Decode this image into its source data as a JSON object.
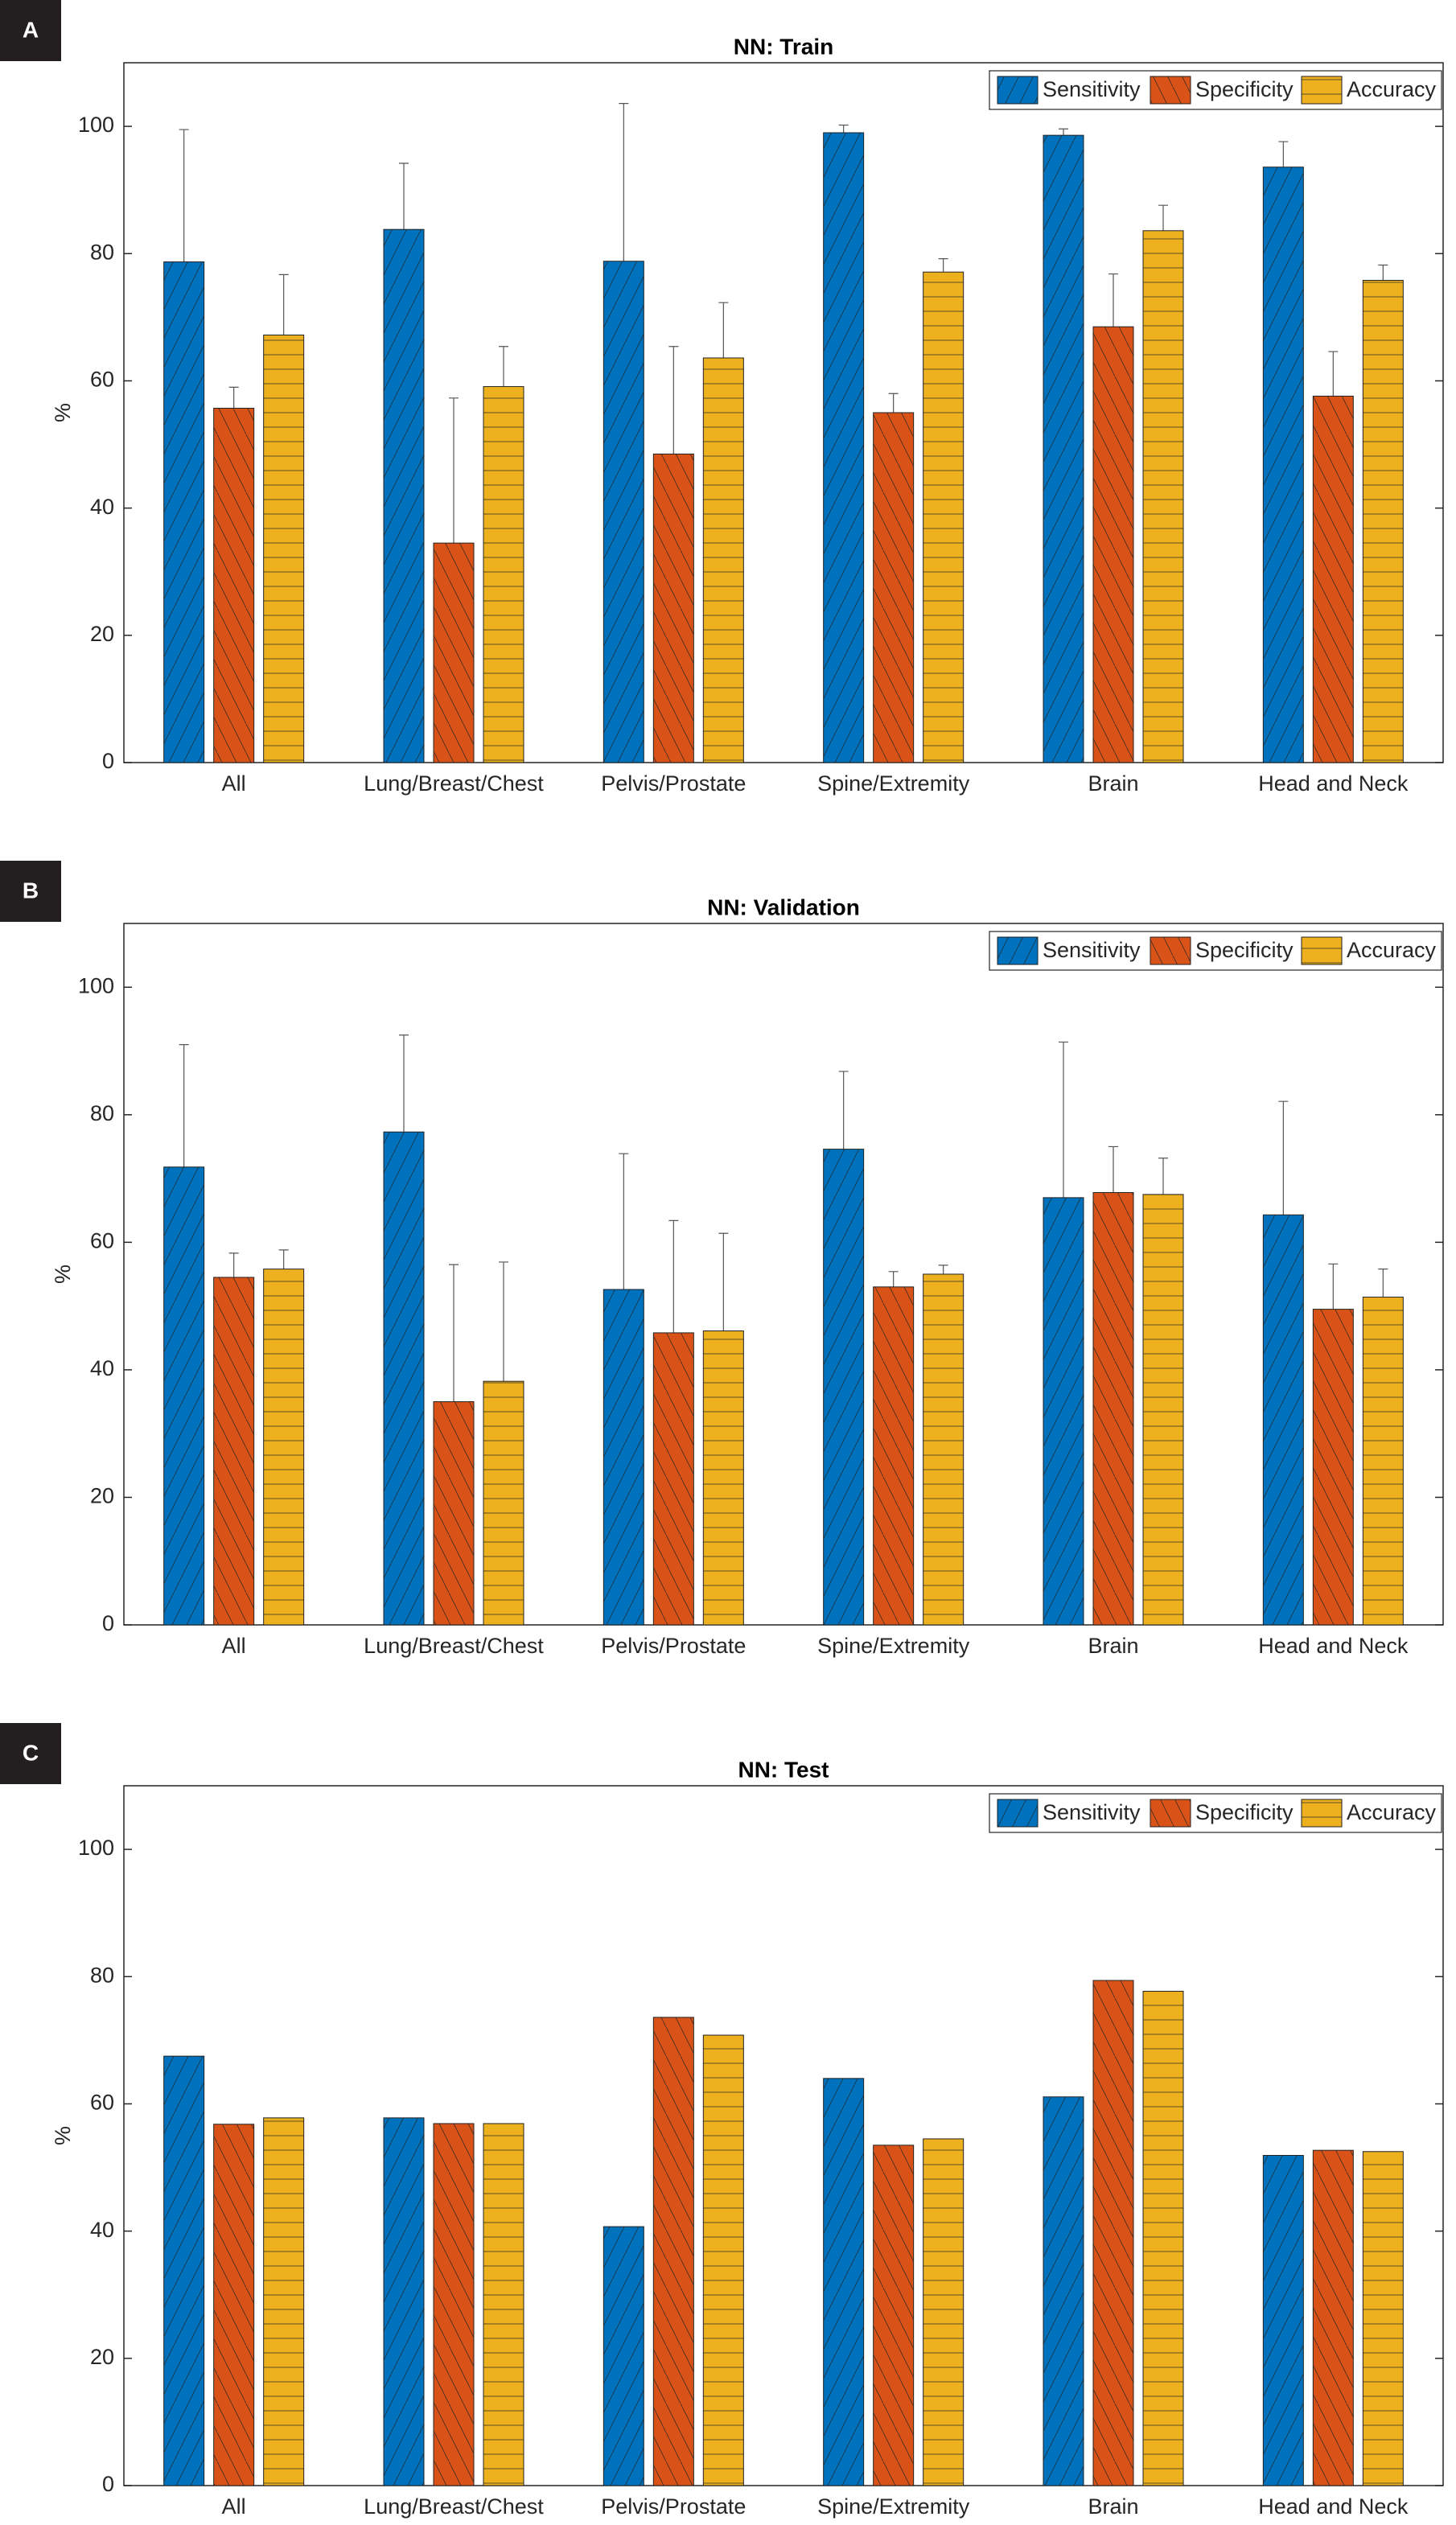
{
  "chart_data": [
    {
      "label": "A",
      "type": "bar",
      "title": "NN: Train",
      "ylabel": "%",
      "categories": [
        "All",
        "Lung/Breast/Chest",
        "Pelvis/Prostate",
        "Spine/Extremity",
        "Brain",
        "Head and Neck"
      ],
      "series": [
        {
          "name": "Sensitivity",
          "color": "#0072BD",
          "values": [
            78.7,
            83.8,
            78.8,
            99.0,
            98.6,
            93.6
          ],
          "errors": [
            20.8,
            10.4,
            24.8,
            1.2,
            1.0,
            4.0
          ]
        },
        {
          "name": "Specificity",
          "color": "#D95319",
          "values": [
            55.7,
            34.5,
            48.5,
            55.0,
            68.5,
            57.6
          ],
          "errors": [
            3.3,
            22.8,
            16.9,
            3.0,
            8.3,
            7.0
          ]
        },
        {
          "name": "Accuracy",
          "color": "#EDB120",
          "values": [
            67.2,
            59.1,
            63.6,
            77.1,
            83.6,
            75.8
          ],
          "errors": [
            9.5,
            6.3,
            8.7,
            2.1,
            4.0,
            2.4
          ]
        }
      ],
      "ylim": [
        0,
        110
      ],
      "yticks": [
        0,
        20,
        40,
        60,
        80,
        100
      ],
      "legend": "northeast"
    },
    {
      "label": "B",
      "type": "bar",
      "title": "NN: Validation",
      "ylabel": "%",
      "categories": [
        "All",
        "Lung/Breast/Chest",
        "Pelvis/Prostate",
        "Spine/Extremity",
        "Brain",
        "Head and Neck"
      ],
      "series": [
        {
          "name": "Sensitivity",
          "color": "#0072BD",
          "values": [
            71.8,
            77.3,
            52.6,
            74.6,
            67.0,
            64.3
          ],
          "errors": [
            19.2,
            15.2,
            21.3,
            12.2,
            24.4,
            17.8
          ]
        },
        {
          "name": "Specificity",
          "color": "#D95319",
          "values": [
            54.5,
            35.0,
            45.8,
            53.0,
            67.8,
            49.5
          ],
          "errors": [
            3.8,
            21.5,
            17.6,
            2.4,
            7.2,
            7.1
          ]
        },
        {
          "name": "Accuracy",
          "color": "#EDB120",
          "values": [
            55.8,
            38.2,
            46.1,
            55.0,
            67.5,
            51.4
          ],
          "errors": [
            3.0,
            18.7,
            15.3,
            1.4,
            5.7,
            4.4
          ]
        }
      ],
      "ylim": [
        0,
        110
      ],
      "yticks": [
        0,
        20,
        40,
        60,
        80,
        100
      ],
      "legend": "northeast"
    },
    {
      "label": "C",
      "type": "bar",
      "title": "NN: Test",
      "ylabel": "%",
      "categories": [
        "All",
        "Lung/Breast/Chest",
        "Pelvis/Prostate",
        "Spine/Extremity",
        "Brain",
        "Head and Neck"
      ],
      "series": [
        {
          "name": "Sensitivity",
          "color": "#0072BD",
          "values": [
            67.5,
            57.8,
            40.7,
            64.0,
            61.1,
            51.9
          ]
        },
        {
          "name": "Specificity",
          "color": "#D95319",
          "values": [
            56.8,
            56.9,
            73.6,
            53.5,
            79.4,
            52.7
          ]
        },
        {
          "name": "Accuracy",
          "color": "#EDB120",
          "values": [
            57.8,
            56.9,
            70.8,
            54.5,
            77.7,
            52.5
          ]
        }
      ],
      "ylim": [
        0,
        110
      ],
      "yticks": [
        0,
        20,
        40,
        60,
        80,
        100
      ],
      "legend": "northeast"
    }
  ]
}
